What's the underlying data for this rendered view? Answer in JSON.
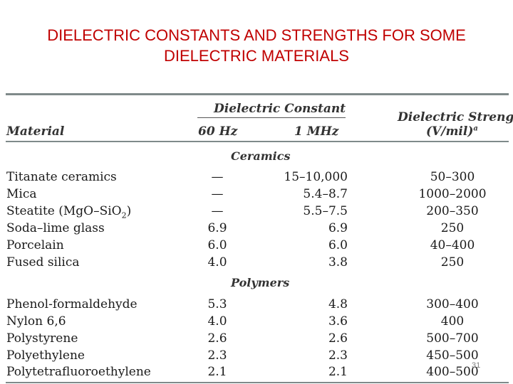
{
  "title": {
    "line1": "DIELECTRIC CONSTANTS AND STRENGTHS FOR SOME",
    "line2": "DIELECTRIC MATERIALS"
  },
  "header": {
    "material": "Material",
    "dielectric_constant": "Dielectric Constant",
    "hz60": "60 Hz",
    "mhz1": "1 MHz",
    "strength_line1": "Dielectric Strength",
    "strength_line2": "(V/mil)",
    "strength_sup": "a"
  },
  "sections": {
    "ceramics": "Ceramics",
    "polymers": "Polymers"
  },
  "ceramics": [
    {
      "material": "Titanate ceramics",
      "hz60": "—",
      "mhz1": "15–10,000",
      "strength": "50–300"
    },
    {
      "material": "Mica",
      "hz60": "—",
      "mhz1": "5.4–8.7",
      "strength": "1000–2000"
    },
    {
      "material": "Steatite (MgO–SiO",
      "sub": "2",
      "close": ")",
      "hz60": "—",
      "mhz1": "5.5–7.5",
      "strength": "200–350"
    },
    {
      "material": "Soda–lime glass",
      "hz60": "6.9",
      "mhz1": "6.9",
      "strength": "250"
    },
    {
      "material": "Porcelain",
      "hz60": "6.0",
      "mhz1": "6.0",
      "strength": "40–400"
    },
    {
      "material": "Fused silica",
      "hz60": "4.0",
      "mhz1": "3.8",
      "strength": "250"
    }
  ],
  "polymers": [
    {
      "material": "Phenol-formaldehyde",
      "hz60": "5.3",
      "mhz1": "4.8",
      "strength": "300–400"
    },
    {
      "material": "Nylon 6,6",
      "hz60": "4.0",
      "mhz1": "3.6",
      "strength": "400"
    },
    {
      "material": "Polystyrene",
      "hz60": "2.6",
      "mhz1": "2.6",
      "strength": "500–700"
    },
    {
      "material": "Polyethylene",
      "hz60": "2.3",
      "mhz1": "2.3",
      "strength": "450–500"
    },
    {
      "material": "Polytetrafluoroethylene",
      "hz60": "2.1",
      "mhz1": "2.1",
      "strength": "400–500"
    }
  ],
  "page_number": "31",
  "colors": {
    "title": "#c00000",
    "rule": "#7f8a8a"
  }
}
